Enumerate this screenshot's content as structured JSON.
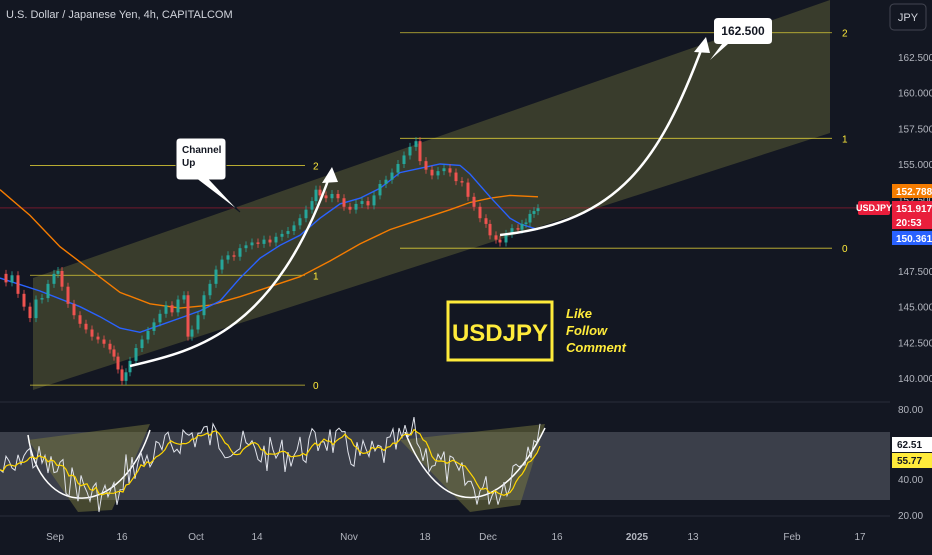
{
  "header": {
    "title": "U.S. Dollar / Japanese Yen, 4h, CAPITALCOM",
    "currency_button": "JPY"
  },
  "chart_data": {
    "type": "line",
    "symbol": "USDJPY",
    "timeframe": "4h",
    "x_ticks": [
      "Sep",
      "16",
      "Oct",
      "14",
      "Nov",
      "18",
      "Dec",
      "16",
      "2025",
      "13",
      "Feb",
      "17"
    ],
    "ylim": [
      138.5,
      166.0
    ],
    "y_ticks": [
      140.0,
      142.5,
      145.0,
      147.5,
      150.0,
      152.5,
      155.0,
      157.5,
      160.0,
      162.5
    ],
    "y_tick_labels": [
      "140.000",
      "142.500",
      "145.000",
      "147.500",
      "150.000",
      "152.500",
      "155.000",
      "157.500",
      "160.000",
      "162.500"
    ],
    "price": [
      [
        0,
        147.3
      ],
      [
        6,
        146.7
      ],
      [
        12,
        147.2
      ],
      [
        18,
        145.9
      ],
      [
        24,
        145.0
      ],
      [
        30,
        144.2
      ],
      [
        36,
        145.5
      ],
      [
        42,
        145.6
      ],
      [
        48,
        146.6
      ],
      [
        54,
        147.3
      ],
      [
        58,
        147.5
      ],
      [
        62,
        146.4
      ],
      [
        68,
        145.2
      ],
      [
        74,
        144.4
      ],
      [
        80,
        143.8
      ],
      [
        86,
        143.4
      ],
      [
        92,
        142.9
      ],
      [
        98,
        142.7
      ],
      [
        104,
        142.4
      ],
      [
        110,
        142.0
      ],
      [
        114,
        141.5
      ],
      [
        118,
        140.6
      ],
      [
        122,
        139.8
      ],
      [
        126,
        140.4
      ],
      [
        130,
        141.2
      ],
      [
        136,
        142.1
      ],
      [
        142,
        142.7
      ],
      [
        148,
        143.3
      ],
      [
        154,
        143.9
      ],
      [
        160,
        144.5
      ],
      [
        166,
        145.1
      ],
      [
        172,
        144.6
      ],
      [
        178,
        145.5
      ],
      [
        184,
        145.8
      ],
      [
        188,
        142.9
      ],
      [
        192,
        143.4
      ],
      [
        198,
        144.4
      ],
      [
        204,
        145.8
      ],
      [
        210,
        146.6
      ],
      [
        216,
        147.6
      ],
      [
        222,
        148.3
      ],
      [
        228,
        148.6
      ],
      [
        234,
        148.5
      ],
      [
        240,
        149.1
      ],
      [
        246,
        149.3
      ],
      [
        252,
        149.5
      ],
      [
        258,
        149.4
      ],
      [
        264,
        149.7
      ],
      [
        270,
        149.5
      ],
      [
        276,
        149.9
      ],
      [
        282,
        150.1
      ],
      [
        288,
        150.3
      ],
      [
        294,
        150.7
      ],
      [
        300,
        151.2
      ],
      [
        306,
        151.8
      ],
      [
        312,
        152.4
      ],
      [
        316,
        153.2
      ],
      [
        320,
        152.8
      ],
      [
        326,
        152.6
      ],
      [
        332,
        152.9
      ],
      [
        338,
        152.6
      ],
      [
        344,
        152.0
      ],
      [
        350,
        151.8
      ],
      [
        356,
        152.2
      ],
      [
        362,
        152.4
      ],
      [
        368,
        152.1
      ],
      [
        374,
        152.8
      ],
      [
        380,
        153.6
      ],
      [
        386,
        153.9
      ],
      [
        392,
        154.4
      ],
      [
        398,
        155.0
      ],
      [
        404,
        155.6
      ],
      [
        410,
        156.2
      ],
      [
        416,
        156.6
      ],
      [
        420,
        155.2
      ],
      [
        426,
        154.6
      ],
      [
        432,
        154.2
      ],
      [
        438,
        154.5
      ],
      [
        444,
        154.7
      ],
      [
        450,
        154.4
      ],
      [
        456,
        153.8
      ],
      [
        462,
        153.7
      ],
      [
        468,
        152.7
      ],
      [
        474,
        152.0
      ],
      [
        480,
        151.2
      ],
      [
        486,
        150.8
      ],
      [
        490,
        150.0
      ],
      [
        496,
        149.7
      ],
      [
        500,
        149.5
      ],
      [
        506,
        150.1
      ],
      [
        512,
        150.5
      ],
      [
        518,
        150.4
      ],
      [
        522,
        150.8
      ],
      [
        526,
        150.9
      ],
      [
        530,
        151.5
      ],
      [
        534,
        151.7
      ],
      [
        538,
        151.9
      ]
    ],
    "ma_blue": [
      [
        0,
        147.0
      ],
      [
        40,
        146.1
      ],
      [
        80,
        145.0
      ],
      [
        100,
        144.3
      ],
      [
        120,
        143.5
      ],
      [
        140,
        143.2
      ],
      [
        160,
        143.7
      ],
      [
        180,
        144.2
      ],
      [
        200,
        144.7
      ],
      [
        220,
        145.4
      ],
      [
        240,
        147.0
      ],
      [
        260,
        148.4
      ],
      [
        280,
        149.3
      ],
      [
        300,
        150.0
      ],
      [
        320,
        151.2
      ],
      [
        340,
        152.2
      ],
      [
        360,
        152.6
      ],
      [
        380,
        153.3
      ],
      [
        400,
        154.4
      ],
      [
        420,
        154.7
      ],
      [
        440,
        155.0
      ],
      [
        460,
        154.9
      ],
      [
        470,
        154.3
      ],
      [
        490,
        152.7
      ],
      [
        510,
        151.2
      ],
      [
        520,
        150.8
      ],
      [
        538,
        150.4
      ]
    ],
    "ma_orange": [
      [
        0,
        153.2
      ],
      [
        30,
        151.4
      ],
      [
        60,
        149.2
      ],
      [
        90,
        147.6
      ],
      [
        120,
        146.0
      ],
      [
        150,
        145.2
      ],
      [
        180,
        144.9
      ],
      [
        210,
        145.1
      ],
      [
        240,
        145.7
      ],
      [
        270,
        146.4
      ],
      [
        300,
        147.1
      ],
      [
        330,
        148.2
      ],
      [
        360,
        149.4
      ],
      [
        390,
        150.4
      ],
      [
        420,
        151.1
      ],
      [
        450,
        151.8
      ],
      [
        470,
        152.3
      ],
      [
        490,
        152.6
      ],
      [
        510,
        152.8
      ],
      [
        538,
        152.7
      ]
    ],
    "channel_polygon": [
      [
        33,
        390
      ],
      [
        830,
        133
      ],
      [
        830,
        0
      ],
      [
        33,
        278
      ]
    ],
    "fib_levels_channel_up": [
      {
        "label": "2",
        "price": 154.9
      },
      {
        "label": "1",
        "price": 147.2
      },
      {
        "label": "0",
        "price": 139.5
      }
    ],
    "fib_levels_projection": [
      {
        "label": "2",
        "price": 164.2
      },
      {
        "label": "1",
        "price": 156.8
      },
      {
        "label": "0",
        "price": 149.1
      }
    ],
    "badges": [
      {
        "value": "152.788",
        "color": "#f57c00",
        "price": 152.788
      },
      {
        "value": "151.917",
        "color": "#e91e3c",
        "price": 151.917
      },
      {
        "value": "20:53",
        "color": "#e91e3c",
        "price": 151.0
      },
      {
        "value": "150.361",
        "color": "#2962ff",
        "price": 150.361
      }
    ],
    "symbol_tag": "USDJPY",
    "target_price": "162.500",
    "annotation_channel": "Channel\nUp",
    "promo": {
      "logo_text": "USDJPY",
      "lines": [
        "Like",
        "Follow",
        "Comment"
      ]
    }
  },
  "rsi_panel": {
    "y_tick_labels": [
      "80.00",
      "40.00",
      "20.00"
    ],
    "badges": [
      {
        "value": "62.51",
        "color": "#ffffff",
        "text_color": "#131722"
      },
      {
        "value": "55.77",
        "color": "#ffeb3b",
        "text_color": "#131722"
      }
    ]
  },
  "colors": {
    "background": "#131722",
    "price_line": "#26a69a",
    "price_down": "#ef5350",
    "ma_blue": "#2962ff",
    "ma_orange": "#f57c00",
    "fib": "#ffeb3b",
    "channel_fill": "#5b5a33"
  }
}
